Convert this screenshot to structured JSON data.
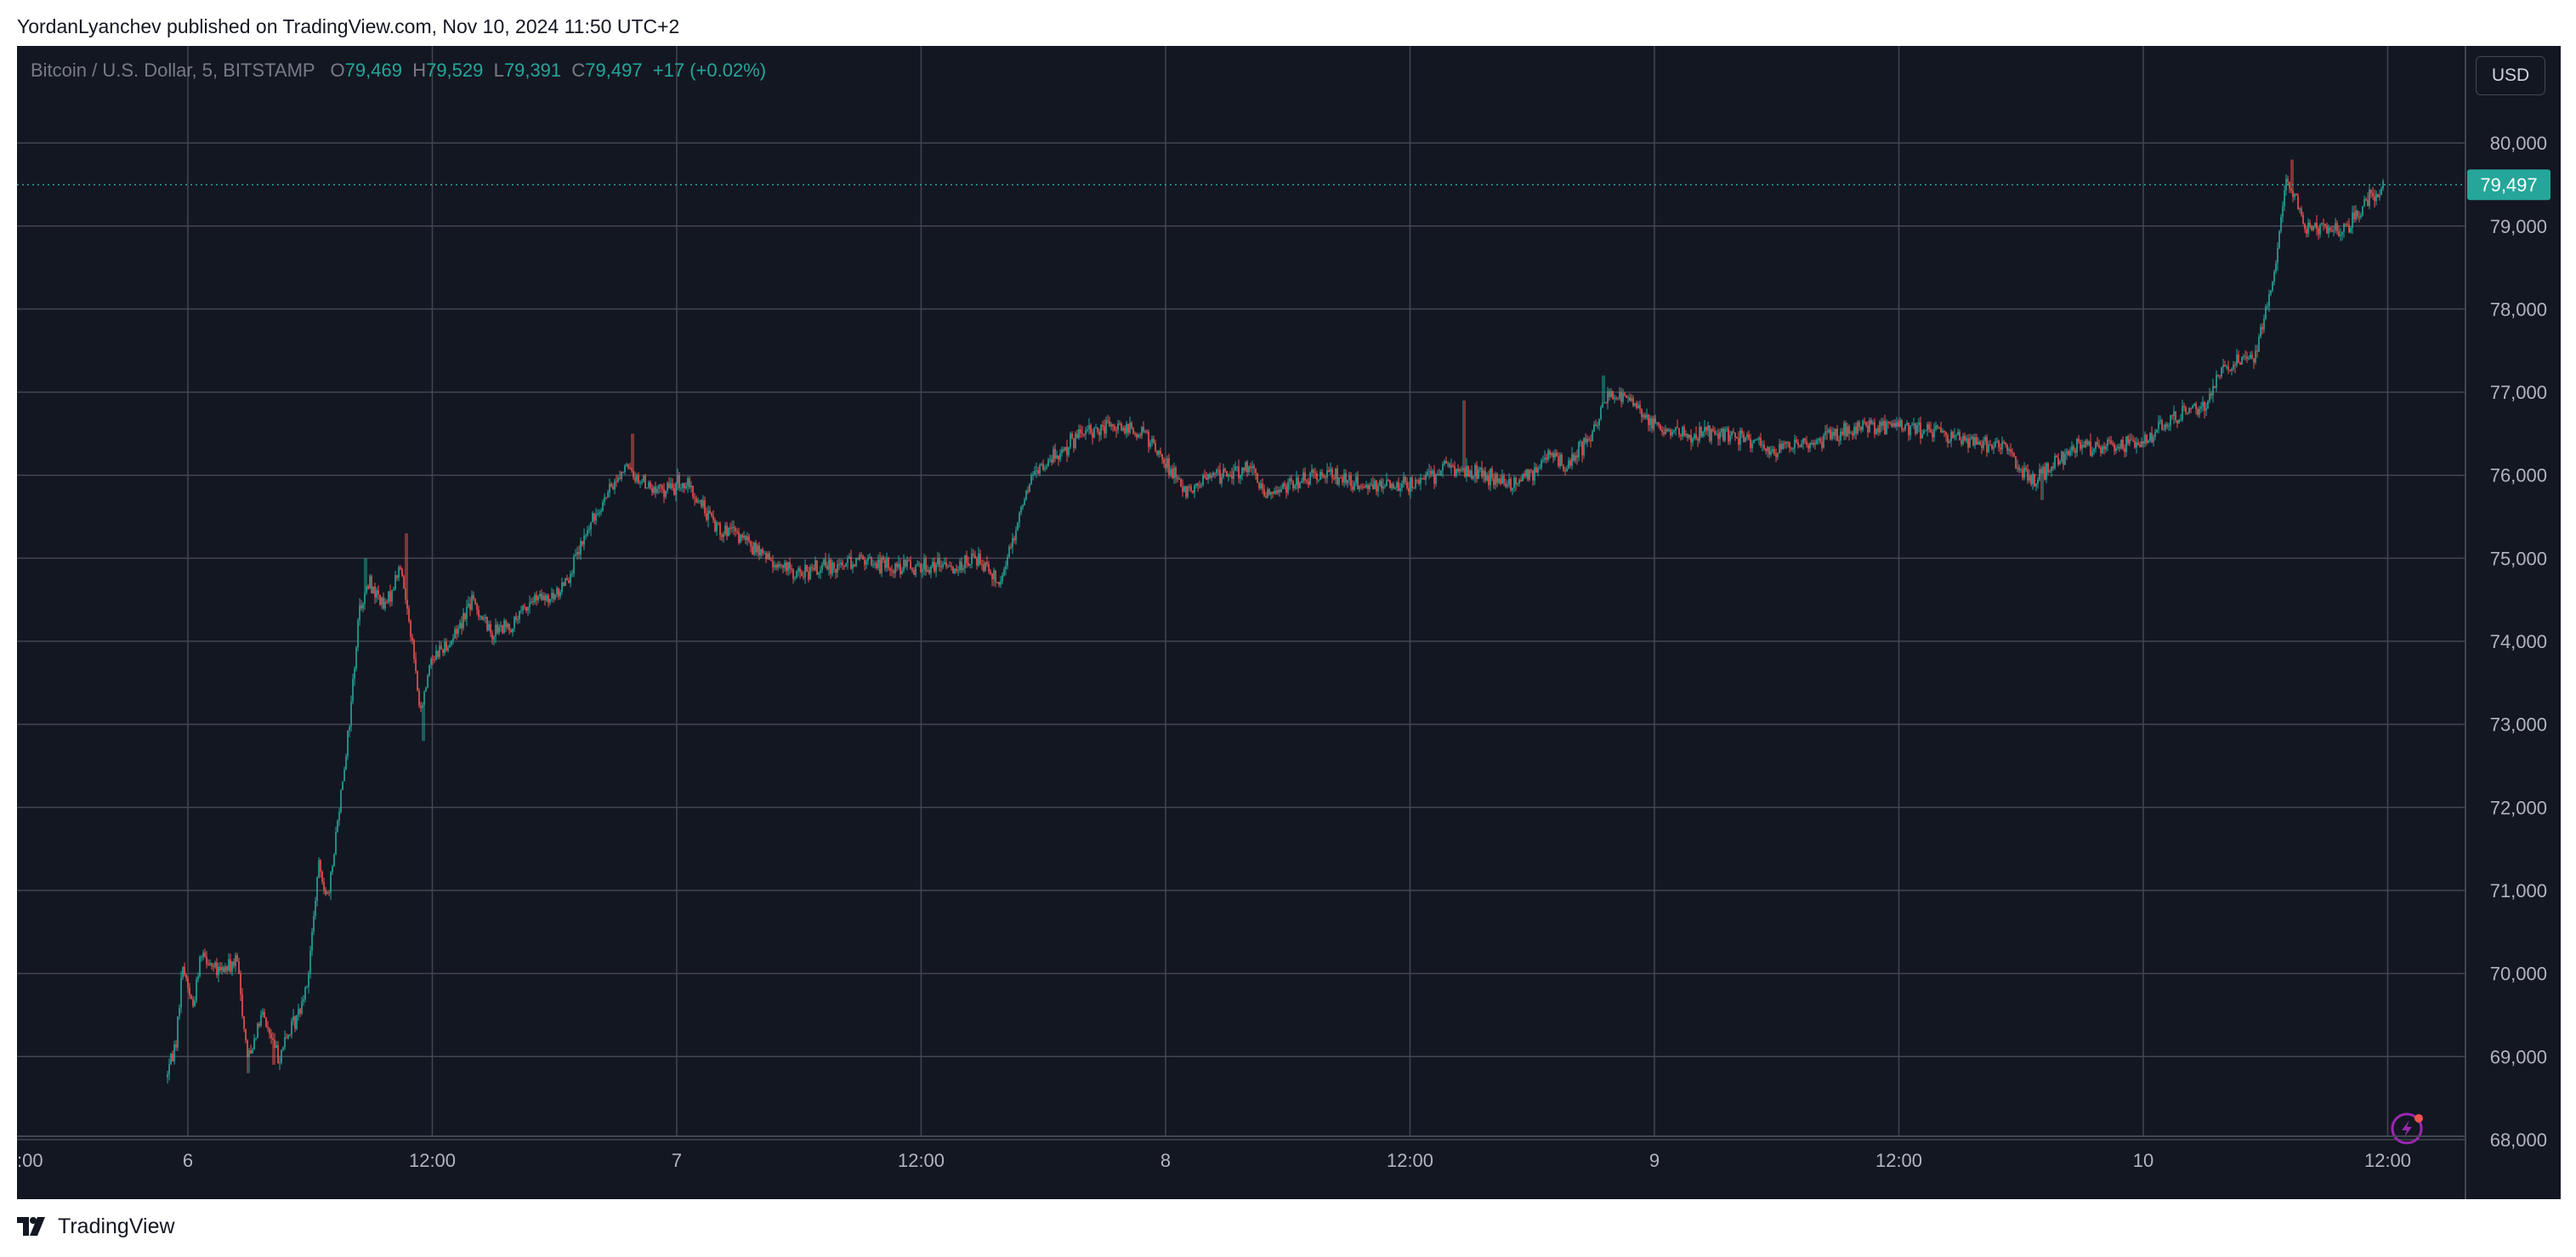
{
  "header": {
    "published_text": "YordanLyanchev published on TradingView.com, Nov 10, 2024 11:50 UTC+2"
  },
  "symbol": {
    "name": "Bitcoin / U.S. Dollar, 5, BITSTAMP",
    "open_label": "O",
    "open": "79,469",
    "high_label": "H",
    "high": "79,529",
    "low_label": "L",
    "low": "79,391",
    "close_label": "C",
    "close": "79,497",
    "change": "+17 (+0.02%)"
  },
  "currency_button": "USD",
  "last_price_label": "79,497",
  "footer": {
    "brand": "TradingView",
    "logo_icon": "tradingview-logo-icon"
  },
  "colors": {
    "background": "#131722",
    "grid": "#434651",
    "up": "#26a69a",
    "down": "#ef5350",
    "axis_text": "#b2b5be",
    "price_label": "#26a69a",
    "alert_icon": "#9c27b0"
  },
  "chart_data": {
    "type": "candlestick",
    "title": "Bitcoin / U.S. Dollar, 5, BITSTAMP",
    "x_ticks": [
      ":00",
      "6",
      "12:00",
      "7",
      "12:00",
      "8",
      "12:00",
      "9",
      "12:00",
      "10",
      "12:00"
    ],
    "x_tick_times": [
      "2024-11-05 12:00",
      "2024-11-06 00:00",
      "2024-11-06 12:00",
      "2024-11-07 00:00",
      "2024-11-07 12:00",
      "2024-11-08 00:00",
      "2024-11-08 12:00",
      "2024-11-09 00:00",
      "2024-11-09 12:00",
      "2024-11-10 00:00",
      "2024-11-10 12:00"
    ],
    "y_ticks": [
      68000,
      69000,
      70000,
      71000,
      72000,
      73000,
      74000,
      75000,
      76000,
      77000,
      78000,
      79000,
      80000
    ],
    "y_tick_labels": [
      "68,000",
      "69,000",
      "70,000",
      "71,000",
      "72,000",
      "73,000",
      "74,000",
      "75,000",
      "76,000",
      "77,000",
      "78,000",
      "79,000",
      "80,000"
    ],
    "ylim": [
      67600,
      80800
    ],
    "last_price": 79497,
    "grid": true,
    "price_path": [
      [
        "2024-11-05 23:00",
        68750
      ],
      [
        "2024-11-05 23:30",
        69200
      ],
      [
        "2024-11-05 23:50",
        70100
      ],
      [
        "2024-11-06 00:20",
        69600
      ],
      [
        "2024-11-06 00:45",
        70300
      ],
      [
        "2024-11-06 01:30",
        70000
      ],
      [
        "2024-11-06 02:30",
        70150
      ],
      [
        "2024-11-06 03:00",
        69000
      ],
      [
        "2024-11-06 03:45",
        69500
      ],
      [
        "2024-11-06 04:30",
        69000
      ],
      [
        "2024-11-06 05:30",
        69500
      ],
      [
        "2024-11-06 06:00",
        70000
      ],
      [
        "2024-11-06 06:30",
        71300
      ],
      [
        "2024-11-06 07:00",
        70900
      ],
      [
        "2024-11-06 07:30",
        72000
      ],
      [
        "2024-11-06 08:00",
        73000
      ],
      [
        "2024-11-06 08:30",
        74400
      ],
      [
        "2024-11-06 09:00",
        74700
      ],
      [
        "2024-11-06 09:45",
        74400
      ],
      [
        "2024-11-06 10:30",
        74900
      ],
      [
        "2024-11-06 11:00",
        74200
      ],
      [
        "2024-11-06 11:30",
        73100
      ],
      [
        "2024-11-06 12:00",
        73800
      ],
      [
        "2024-11-06 13:00",
        74000
      ],
      [
        "2024-11-06 14:00",
        74500
      ],
      [
        "2024-11-06 15:00",
        74100
      ],
      [
        "2024-11-06 16:00",
        74200
      ],
      [
        "2024-11-06 17:00",
        74500
      ],
      [
        "2024-11-06 18:00",
        74500
      ],
      [
        "2024-11-06 19:00",
        74900
      ],
      [
        "2024-11-06 20:00",
        75500
      ],
      [
        "2024-11-06 21:30",
        76100
      ],
      [
        "2024-11-06 23:00",
        75800
      ],
      [
        "2024-11-07 00:30",
        75900
      ],
      [
        "2024-11-07 02:00",
        75400
      ],
      [
        "2024-11-07 03:30",
        75200
      ],
      [
        "2024-11-07 04:30",
        75000
      ],
      [
        "2024-11-07 06:00",
        74800
      ],
      [
        "2024-11-07 07:30",
        74900
      ],
      [
        "2024-11-07 09:00",
        75000
      ],
      [
        "2024-11-07 10:30",
        74900
      ],
      [
        "2024-11-07 12:00",
        74900
      ],
      [
        "2024-11-07 13:30",
        74900
      ],
      [
        "2024-11-07 15:00",
        75000
      ],
      [
        "2024-11-07 16:00",
        74700
      ],
      [
        "2024-11-07 16:30",
        75200
      ],
      [
        "2024-11-07 17:30",
        76000
      ],
      [
        "2024-11-07 19:00",
        76300
      ],
      [
        "2024-11-07 20:00",
        76500
      ],
      [
        "2024-11-07 21:30",
        76600
      ],
      [
        "2024-11-07 23:00",
        76500
      ],
      [
        "2024-11-08 00:00",
        76200
      ],
      [
        "2024-11-08 01:00",
        75800
      ],
      [
        "2024-11-08 02:30",
        76000
      ],
      [
        "2024-11-08 04:00",
        76100
      ],
      [
        "2024-11-08 05:00",
        75800
      ],
      [
        "2024-11-08 06:30",
        75900
      ],
      [
        "2024-11-08 08:00",
        76000
      ],
      [
        "2024-11-08 09:30",
        75900
      ],
      [
        "2024-11-08 11:00",
        75900
      ],
      [
        "2024-11-08 12:30",
        75900
      ],
      [
        "2024-11-08 14:00",
        76100
      ],
      [
        "2024-11-08 15:30",
        76000
      ],
      [
        "2024-11-08 17:00",
        75900
      ],
      [
        "2024-11-08 18:00",
        76000
      ],
      [
        "2024-11-08 19:00",
        76300
      ],
      [
        "2024-11-08 19:45",
        76100
      ],
      [
        "2024-11-08 21:00",
        76500
      ],
      [
        "2024-11-08 22:00",
        77000
      ],
      [
        "2024-11-08 23:00",
        76900
      ],
      [
        "2024-11-09 00:00",
        76600
      ],
      [
        "2024-11-09 02:00",
        76500
      ],
      [
        "2024-11-09 04:00",
        76500
      ],
      [
        "2024-11-09 06:00",
        76300
      ],
      [
        "2024-11-09 08:00",
        76400
      ],
      [
        "2024-11-09 10:00",
        76600
      ],
      [
        "2024-11-09 12:00",
        76600
      ],
      [
        "2024-11-09 14:00",
        76500
      ],
      [
        "2024-11-09 16:00",
        76400
      ],
      [
        "2024-11-09 17:30",
        76300
      ],
      [
        "2024-11-09 18:30",
        75900
      ],
      [
        "2024-11-09 20:00",
        76200
      ],
      [
        "2024-11-09 21:00",
        76400
      ],
      [
        "2024-11-09 22:00",
        76300
      ],
      [
        "2024-11-10 00:00",
        76400
      ],
      [
        "2024-11-10 01:30",
        76700
      ],
      [
        "2024-11-10 03:00",
        76800
      ],
      [
        "2024-11-10 04:00",
        77300
      ],
      [
        "2024-11-10 05:30",
        77400
      ],
      [
        "2024-11-10 06:30",
        78400
      ],
      [
        "2024-11-10 07:00",
        79500
      ],
      [
        "2024-11-10 07:30",
        79400
      ],
      [
        "2024-11-10 08:00",
        79000
      ],
      [
        "2024-11-10 09:00",
        78950
      ],
      [
        "2024-11-10 10:00",
        78950
      ],
      [
        "2024-11-10 11:00",
        79300
      ],
      [
        "2024-11-10 11:50",
        79497
      ]
    ],
    "notable_wicks": [
      [
        "2024-11-06 03:00",
        68800
      ],
      [
        "2024-11-06 04:15",
        68900
      ],
      [
        "2024-11-06 08:45",
        75000
      ],
      [
        "2024-11-06 10:45",
        75300
      ],
      [
        "2024-11-06 11:35",
        72800
      ],
      [
        "2024-11-06 21:50",
        76500
      ],
      [
        "2024-11-08 14:40",
        76900
      ],
      [
        "2024-11-08 21:30",
        77200
      ],
      [
        "2024-11-09 19:00",
        75700
      ],
      [
        "2024-11-10 07:20",
        79800
      ]
    ]
  }
}
